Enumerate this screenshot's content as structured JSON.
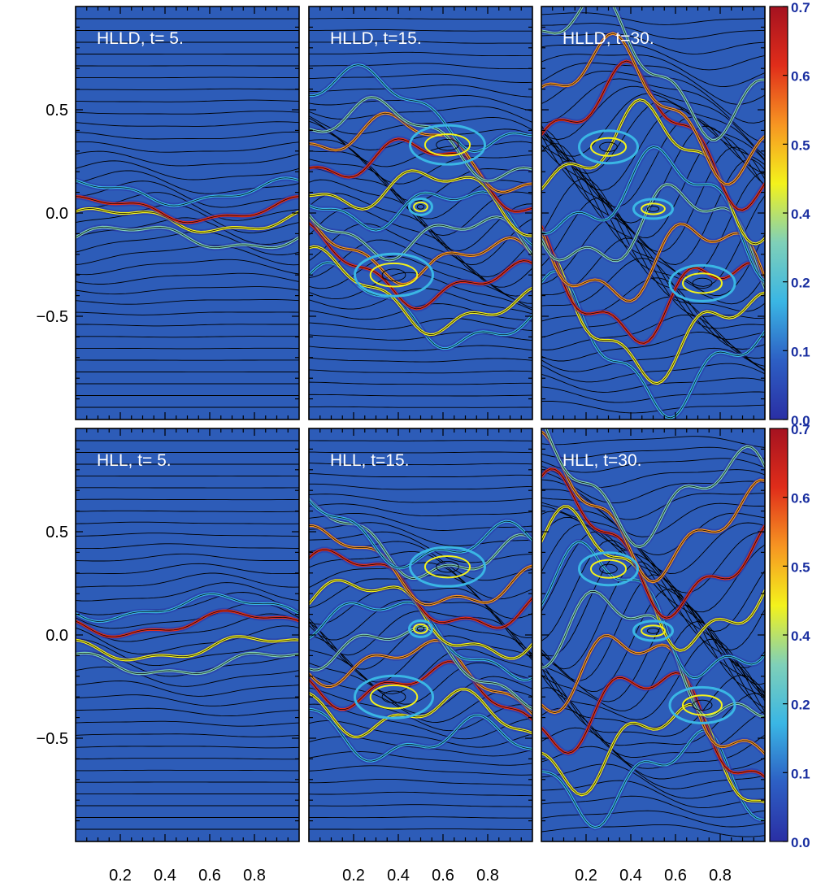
{
  "chart_data": {
    "type": "heatmap",
    "panels": [
      {
        "row": 0,
        "col": 0,
        "label": "HLLD, t= 5.",
        "solver": "HLLD",
        "time": 5
      },
      {
        "row": 0,
        "col": 1,
        "label": "HLLD, t=15.",
        "solver": "HLLD",
        "time": 15
      },
      {
        "row": 0,
        "col": 2,
        "label": "HLLD, t=30.",
        "solver": "HLLD",
        "time": 30
      },
      {
        "row": 1,
        "col": 0,
        "label": "HLL, t= 5.",
        "solver": "HLL",
        "time": 5
      },
      {
        "row": 1,
        "col": 1,
        "label": "HLL, t=15.",
        "solver": "HLL",
        "time": 15
      },
      {
        "row": 1,
        "col": 2,
        "label": "HLL, t=30.",
        "solver": "HLL",
        "time": 30
      }
    ],
    "x_ticks": [
      "0.2",
      "0.4",
      "0.6",
      "0.8"
    ],
    "x_tick_values": [
      0.2,
      0.4,
      0.6,
      0.8
    ],
    "y_ticks": [
      "0.5",
      "0.0",
      "−0.5"
    ],
    "y_tick_values": [
      0.5,
      0.0,
      -0.5
    ],
    "xlim": [
      0,
      1
    ],
    "ylim": [
      -1,
      1
    ],
    "colorbar": {
      "ticks": [
        "0.0",
        "0.1",
        "0.2",
        "0.4",
        "0.5",
        "0.6",
        "0.7"
      ],
      "tick_values": [
        0.0,
        0.1,
        0.2,
        0.4,
        0.5,
        0.6,
        0.7
      ],
      "range": [
        0,
        0.7
      ],
      "scale": "nonlinear",
      "colors": [
        "#2a2fa4",
        "#2d5fc4",
        "#3ab6e4",
        "#7fd0b8",
        "#f3f21c",
        "#f79522",
        "#e02d1a",
        "#a51220"
      ]
    },
    "background_color": "#2d5cb8",
    "field_line_color": "#000000"
  }
}
